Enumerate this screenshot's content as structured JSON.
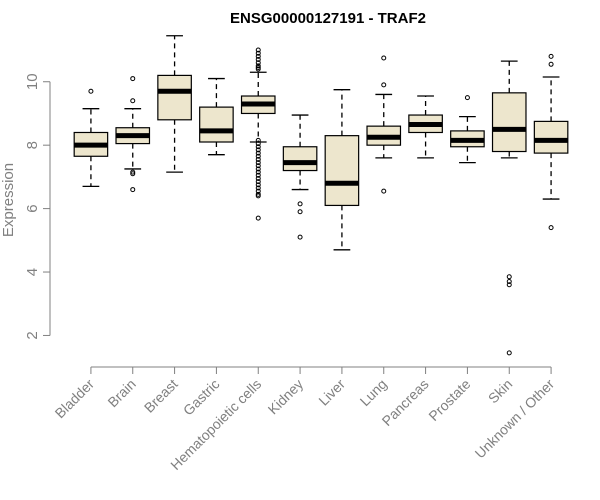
{
  "chart_data": {
    "type": "boxplot",
    "title": "ENSG00000127191 - TRAF2",
    "xlabel": "",
    "ylabel": "Expression",
    "ylim": [
      1.1,
      11.6
    ],
    "yticks": [
      2,
      4,
      6,
      8,
      10
    ],
    "categories": [
      "Bladder",
      "Brain",
      "Breast",
      "Gastric",
      "Hematopoietic cells",
      "Kidney",
      "Liver",
      "Lung",
      "Pancreas",
      "Prostate",
      "Skin",
      "Unknown / Other"
    ],
    "boxes": [
      {
        "name": "Bladder",
        "whisker_low": 6.7,
        "q1": 7.65,
        "median": 8.0,
        "q3": 8.4,
        "whisker_high": 9.15,
        "outliers": [
          9.7
        ]
      },
      {
        "name": "Brain",
        "whisker_low": 7.25,
        "q1": 8.05,
        "median": 8.3,
        "q3": 8.55,
        "whisker_high": 9.15,
        "outliers": [
          10.1,
          9.4,
          7.15,
          7.1,
          6.6
        ]
      },
      {
        "name": "Breast",
        "whisker_low": 7.15,
        "q1": 8.8,
        "median": 9.7,
        "q3": 10.2,
        "whisker_high": 11.45,
        "outliers": []
      },
      {
        "name": "Gastric",
        "whisker_low": 7.7,
        "q1": 8.1,
        "median": 8.45,
        "q3": 9.2,
        "whisker_high": 10.1,
        "outliers": []
      },
      {
        "name": "Hematopoietic cells",
        "whisker_low": 8.1,
        "q1": 9.0,
        "median": 9.3,
        "q3": 9.55,
        "whisker_high": 10.3,
        "outliers": [
          11.0,
          10.9,
          10.8,
          10.7,
          10.6,
          10.5,
          10.45,
          10.4,
          8.15,
          8.05,
          7.95,
          7.85,
          7.75,
          7.65,
          7.55,
          7.45,
          7.35,
          7.25,
          7.15,
          7.05,
          6.95,
          6.85,
          6.75,
          6.65,
          6.55,
          6.45,
          6.4,
          5.7
        ]
      },
      {
        "name": "Kidney",
        "whisker_low": 6.6,
        "q1": 7.2,
        "median": 7.45,
        "q3": 7.95,
        "whisker_high": 8.95,
        "outliers": [
          6.15,
          5.9,
          5.1
        ]
      },
      {
        "name": "Liver",
        "whisker_low": 4.7,
        "q1": 6.1,
        "median": 6.8,
        "q3": 8.3,
        "whisker_high": 9.75,
        "outliers": []
      },
      {
        "name": "Lung",
        "whisker_low": 7.6,
        "q1": 8.0,
        "median": 8.25,
        "q3": 8.6,
        "whisker_high": 9.6,
        "outliers": [
          10.75,
          9.9,
          6.55
        ]
      },
      {
        "name": "Pancreas",
        "whisker_low": 7.6,
        "q1": 8.4,
        "median": 8.65,
        "q3": 8.95,
        "whisker_high": 9.55,
        "outliers": []
      },
      {
        "name": "Prostate",
        "whisker_low": 7.45,
        "q1": 7.95,
        "median": 8.15,
        "q3": 8.45,
        "whisker_high": 8.9,
        "outliers": [
          9.5
        ]
      },
      {
        "name": "Skin",
        "whisker_low": 7.6,
        "q1": 7.8,
        "median": 8.5,
        "q3": 9.65,
        "whisker_high": 10.65,
        "outliers": [
          3.85,
          3.7,
          3.6,
          1.45
        ]
      },
      {
        "name": "Unknown / Other",
        "whisker_low": 6.3,
        "q1": 7.75,
        "median": 8.15,
        "q3": 8.75,
        "whisker_high": 10.15,
        "outliers": [
          10.8,
          10.55,
          5.4
        ]
      }
    ]
  }
}
